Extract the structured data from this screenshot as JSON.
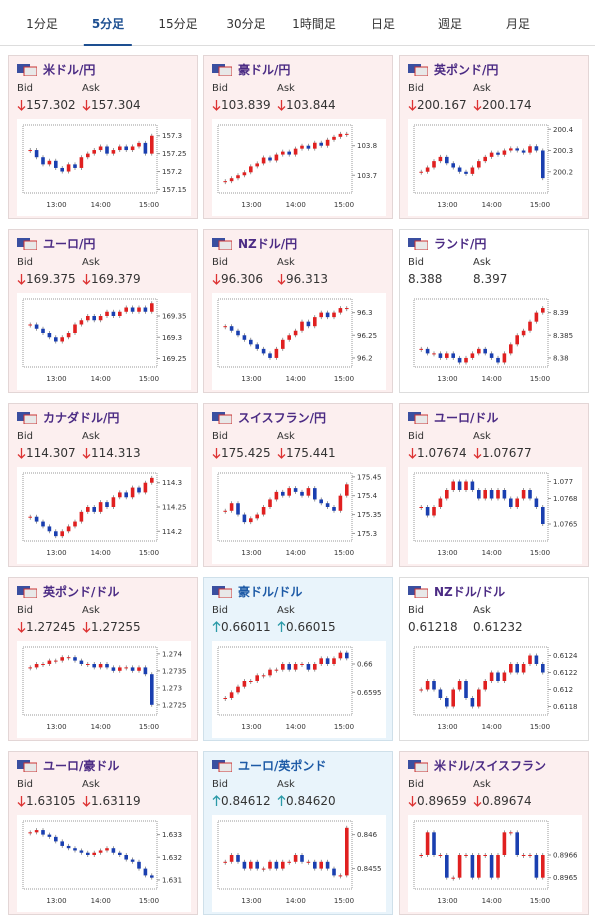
{
  "tabs": {
    "items": [
      "1分足",
      "5分足",
      "15分足",
      "30分足",
      "1時間足",
      "日足",
      "週足",
      "月足"
    ],
    "selected": 1
  },
  "labels": {
    "bid": "Bid",
    "ask": "Ask"
  },
  "time_labels": [
    "13:00",
    "14:00",
    "15:00"
  ],
  "cards": [
    {
      "title": "米ドル/円",
      "bid": "157.302",
      "ask": "157.304",
      "dir": "down",
      "ylim": [
        157.14,
        157.33
      ],
      "yticks": [
        157.15,
        157.2,
        157.25,
        157.3
      ],
      "values": [
        157.26,
        157.24,
        157.22,
        157.23,
        157.21,
        157.2,
        157.22,
        157.21,
        157.24,
        157.25,
        157.26,
        157.27,
        157.25,
        157.26,
        157.27,
        157.26,
        157.27,
        157.28,
        157.25,
        157.3
      ]
    },
    {
      "title": "豪ドル/円",
      "bid": "103.839",
      "ask": "103.844",
      "dir": "down",
      "ylim": [
        103.64,
        103.87
      ],
      "yticks": [
        103.7,
        103.8
      ],
      "values": [
        103.68,
        103.69,
        103.7,
        103.71,
        103.73,
        103.74,
        103.76,
        103.75,
        103.77,
        103.78,
        103.77,
        103.79,
        103.8,
        103.79,
        103.81,
        103.8,
        103.82,
        103.83,
        103.84,
        103.84
      ]
    },
    {
      "title": "英ポンド/円",
      "bid": "200.167",
      "ask": "200.174",
      "dir": "down",
      "ylim": [
        200.1,
        200.42
      ],
      "yticks": [
        200.2,
        200.3,
        200.4
      ],
      "values": [
        200.2,
        200.22,
        200.25,
        200.27,
        200.24,
        200.22,
        200.2,
        200.19,
        200.22,
        200.25,
        200.27,
        200.29,
        200.28,
        200.3,
        200.31,
        200.3,
        200.29,
        200.32,
        200.3,
        200.17
      ]
    },
    {
      "title": "ユーロ/円",
      "bid": "169.375",
      "ask": "169.379",
      "dir": "down",
      "ylim": [
        169.23,
        169.39
      ],
      "yticks": [
        169.25,
        169.3,
        169.35
      ],
      "values": [
        169.33,
        169.32,
        169.31,
        169.3,
        169.29,
        169.3,
        169.31,
        169.33,
        169.34,
        169.35,
        169.34,
        169.35,
        169.36,
        169.35,
        169.36,
        169.37,
        169.36,
        169.37,
        169.36,
        169.38
      ]
    },
    {
      "title": "NZドル/円",
      "bid": "96.306",
      "ask": "96.313",
      "dir": "down",
      "ylim": [
        96.18,
        96.33
      ],
      "yticks": [
        96.2,
        96.25,
        96.3
      ],
      "values": [
        96.27,
        96.26,
        96.25,
        96.24,
        96.23,
        96.22,
        96.21,
        96.2,
        96.22,
        96.24,
        96.25,
        96.26,
        96.28,
        96.27,
        96.29,
        96.3,
        96.29,
        96.3,
        96.31,
        96.31
      ]
    },
    {
      "title": "ランド/円",
      "bid": "8.388",
      "ask": "8.397",
      "dir": "none",
      "ylim": [
        8.378,
        8.393
      ],
      "yticks": [
        8.38,
        8.385,
        8.39
      ],
      "values": [
        8.382,
        8.381,
        8.381,
        8.38,
        8.381,
        8.38,
        8.379,
        8.38,
        8.381,
        8.382,
        8.381,
        8.38,
        8.379,
        8.381,
        8.383,
        8.385,
        8.386,
        8.388,
        8.39,
        8.391
      ]
    },
    {
      "title": "カナダドル/円",
      "bid": "114.307",
      "ask": "114.313",
      "dir": "down",
      "ylim": [
        114.18,
        114.32
      ],
      "yticks": [
        114.2,
        114.25,
        114.3
      ],
      "values": [
        114.23,
        114.22,
        114.21,
        114.2,
        114.19,
        114.2,
        114.21,
        114.22,
        114.24,
        114.25,
        114.24,
        114.26,
        114.25,
        114.27,
        114.28,
        114.27,
        114.29,
        114.28,
        114.3,
        114.31
      ]
    },
    {
      "title": "スイスフラン/円",
      "bid": "175.425",
      "ask": "175.441",
      "dir": "down",
      "ylim": [
        175.28,
        175.46
      ],
      "yticks": [
        175.3,
        175.35,
        175.4,
        175.45
      ],
      "values": [
        175.36,
        175.38,
        175.35,
        175.33,
        175.34,
        175.35,
        175.37,
        175.39,
        175.41,
        175.4,
        175.42,
        175.41,
        175.4,
        175.42,
        175.39,
        175.38,
        175.37,
        175.36,
        175.4,
        175.43
      ]
    },
    {
      "title": "ユーロ/ドル",
      "bid": "1.07674",
      "ask": "1.07677",
      "dir": "down",
      "ylim": [
        1.0763,
        1.0771
      ],
      "yticks": [
        1.0765,
        1.0768,
        1.077
      ],
      "values": [
        1.0767,
        1.0766,
        1.0767,
        1.0768,
        1.0769,
        1.077,
        1.0769,
        1.077,
        1.0769,
        1.0768,
        1.0769,
        1.0768,
        1.0769,
        1.0768,
        1.0767,
        1.0768,
        1.0769,
        1.0768,
        1.0767,
        1.0765
      ]
    },
    {
      "title": "英ポンド/ドル",
      "bid": "1.27245",
      "ask": "1.27255",
      "dir": "down",
      "ylim": [
        1.2722,
        1.2742
      ],
      "yticks": [
        1.2725,
        1.273,
        1.2735,
        1.274
      ],
      "values": [
        1.2736,
        1.2737,
        1.2737,
        1.2738,
        1.2738,
        1.2739,
        1.2739,
        1.2738,
        1.2737,
        1.2737,
        1.2736,
        1.2737,
        1.2736,
        1.2735,
        1.2736,
        1.2736,
        1.2735,
        1.2736,
        1.2734,
        1.2725
      ]
    },
    {
      "title": "豪ドル/ドル",
      "bid": "0.66011",
      "ask": "0.66015",
      "dir": "up",
      "ylim": [
        0.6591,
        0.6603
      ],
      "yticks": [
        0.6595,
        0.66
      ],
      "values": [
        0.6594,
        0.6595,
        0.6596,
        0.6597,
        0.6597,
        0.6598,
        0.6598,
        0.6599,
        0.6599,
        0.66,
        0.6599,
        0.66,
        0.66,
        0.6599,
        0.66,
        0.6601,
        0.66,
        0.6601,
        0.6602,
        0.6601
      ]
    },
    {
      "title": "NZドル/ドル",
      "bid": "0.61218",
      "ask": "0.61232",
      "dir": "none",
      "ylim": [
        0.6117,
        0.6125
      ],
      "yticks": [
        0.6118,
        0.612,
        0.6122,
        0.6124
      ],
      "values": [
        0.612,
        0.6121,
        0.612,
        0.6119,
        0.6118,
        0.612,
        0.6121,
        0.6119,
        0.6118,
        0.612,
        0.6121,
        0.6122,
        0.6121,
        0.6122,
        0.6123,
        0.6122,
        0.6123,
        0.6124,
        0.6123,
        0.6122
      ]
    },
    {
      "title": "ユーロ/豪ドル",
      "bid": "1.63105",
      "ask": "1.63119",
      "dir": "down",
      "ylim": [
        1.6306,
        1.6336
      ],
      "yticks": [
        1.631,
        1.632,
        1.633
      ],
      "values": [
        1.6331,
        1.6332,
        1.633,
        1.6329,
        1.6327,
        1.6325,
        1.6324,
        1.6323,
        1.6322,
        1.6321,
        1.6322,
        1.6323,
        1.6324,
        1.6322,
        1.6321,
        1.6319,
        1.6318,
        1.6315,
        1.6312,
        1.6311
      ]
    },
    {
      "title": "ユーロ/英ポンド",
      "bid": "0.84612",
      "ask": "0.84620",
      "dir": "up",
      "ylim": [
        0.8452,
        0.8462
      ],
      "yticks": [
        0.8455,
        0.846
      ],
      "values": [
        0.8456,
        0.8457,
        0.8456,
        0.8455,
        0.8456,
        0.8455,
        0.8455,
        0.8456,
        0.8455,
        0.8456,
        0.8456,
        0.8457,
        0.8456,
        0.8456,
        0.8455,
        0.8456,
        0.8455,
        0.8454,
        0.8454,
        0.8461
      ]
    },
    {
      "title": "米ドル/スイスフラン",
      "bid": "0.89659",
      "ask": "0.89674",
      "dir": "down",
      "ylim": [
        0.89645,
        0.89675
      ],
      "yticks": [
        0.8965,
        0.8966
      ],
      "values": [
        0.8966,
        0.8967,
        0.8966,
        0.8966,
        0.8965,
        0.8965,
        0.8966,
        0.8966,
        0.8965,
        0.8966,
        0.8966,
        0.8965,
        0.8966,
        0.8967,
        0.8967,
        0.8966,
        0.8966,
        0.8966,
        0.8965,
        0.8966
      ]
    }
  ]
}
